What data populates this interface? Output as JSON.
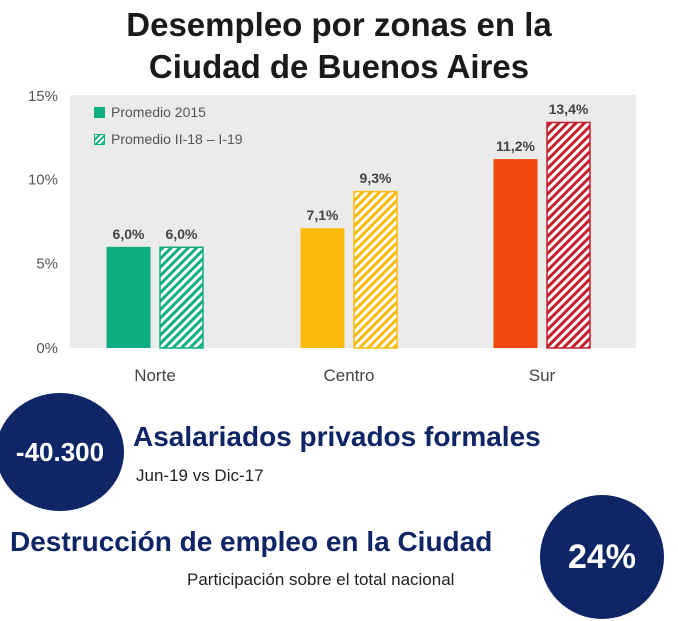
{
  "title_line1": "Desempleo por zonas en la",
  "title_line2": "Ciudad de Buenos Aires",
  "chart_data": {
    "type": "bar",
    "categories": [
      "Norte",
      "Centro",
      "Sur"
    ],
    "series": [
      {
        "name": "Promedio 2015",
        "values": [
          6.0,
          7.1,
          11.2
        ],
        "value_labels": [
          "6,0%",
          "7,1%",
          "11,2%"
        ],
        "pattern": "solid"
      },
      {
        "name": "Promedio II-18 – I-19",
        "values": [
          6.0,
          9.3,
          13.4
        ],
        "value_labels": [
          "6,0%",
          "9,3%",
          "13,4%"
        ],
        "pattern": "hatched"
      }
    ],
    "category_colors": [
      "#0fae82",
      "#fcbb0c",
      "#ef4a0c"
    ],
    "series2_colors": [
      "#0fae82",
      "#fcbb0c",
      "#c41f2d"
    ],
    "legend_colors": [
      "#0fae82",
      "#0fae82"
    ],
    "yticks": [
      "0%",
      "5%",
      "10%",
      "15%"
    ],
    "ylim": [
      0,
      15
    ],
    "legend_position": "top-left",
    "background": "#ebebeb",
    "grid": false
  },
  "stat1": {
    "value": "-40.300",
    "title": "Asalariados privados formales",
    "subtitle": "Jun-19 vs Dic-17"
  },
  "stat2": {
    "value": "24%",
    "title": "Destrucción de empleo en la Ciudad",
    "subtitle": "Participación sobre el total nacional"
  }
}
